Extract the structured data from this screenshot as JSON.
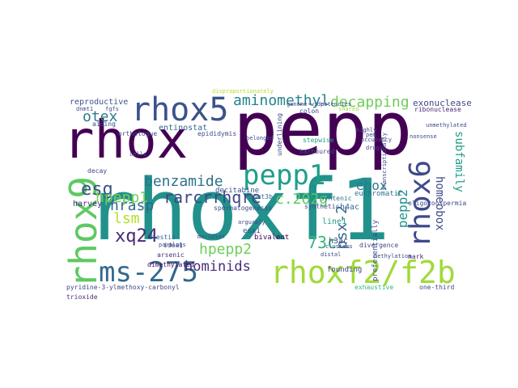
{
  "cloud": {
    "words": [
      "pepp",
      "rhoxf1",
      "rhox",
      "rhox5",
      "pepp1",
      "rhoxf2/f2b",
      "ms-275",
      "rhox9",
      "rhox6",
      "esg",
      "xq24",
      "aminomethyl",
      "decapping",
      "hrasp",
      "rarcrrhqre",
      "hpepp1",
      "c.202g",
      "benzamide",
      "lsm",
      "hpepp2",
      "hominids",
      "otex",
      "73c",
      "psx-2",
      "ehox",
      "pepp2",
      "homeobox",
      "subfamily",
      "exonucleases",
      "reproductive",
      "entinostat",
      "harvey",
      "h3ac",
      "h4ac",
      "line1",
      "euchromatic",
      "founding",
      "trioxide",
      "pyridine-3-ylmethoxy-carbonyl",
      "one-third",
      "ribonuclease",
      "bivalent",
      "esx1",
      "testis",
      "arsenic",
      "dimethylated",
      "ideal",
      "decitabine",
      "dnmt3b",
      "spermatogenesis",
      "colon",
      "stepwise",
      "harboured",
      "underlining",
      "synthetic",
      "orthologue",
      "syntenic",
      "divergence",
      "preferentially",
      "exhaustive",
      "mark",
      "aiding",
      "decay",
      "epididymis",
      "oligozoospermia",
      "potencies",
      "highly",
      "drugs",
      "meridian",
      "nonsense",
      "distal",
      "clusters",
      "shared",
      "fgfs",
      "dnmt1",
      "arguably",
      "transcriptionally",
      "belonged",
      "pem",
      "unmethylated",
      "disproportionately",
      "genome-wide",
      "cells",
      "paralogs",
      "methylation",
      "occupancy"
    ]
  }
}
